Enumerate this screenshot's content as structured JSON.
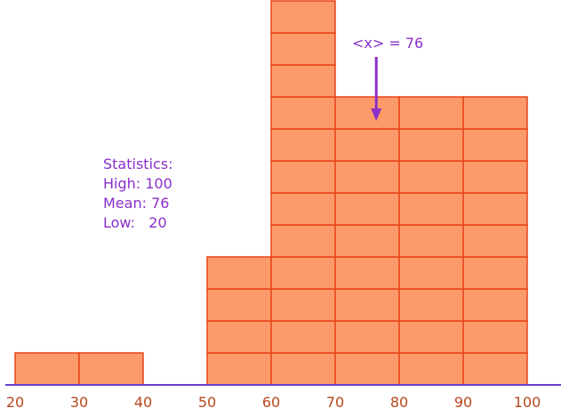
{
  "chart_data": {
    "type": "bar",
    "x": [
      25,
      35,
      55,
      65,
      75,
      85,
      95
    ],
    "values": [
      1,
      1,
      4,
      12,
      9,
      9,
      9
    ],
    "bin_width": 10,
    "xlim": [
      20,
      100
    ],
    "ylim": [
      0,
      12
    ],
    "x_ticks": [
      "20",
      "30",
      "40",
      "50",
      "60",
      "70",
      "80",
      "90",
      "100"
    ],
    "statistics": {
      "heading": "Statistics:",
      "high": "High: 100",
      "mean": "Mean: 76",
      "low": "Low:   20"
    },
    "mean_annotation": {
      "label": "<x> = 76",
      "value": 76
    },
    "colors": {
      "fill": "#fc9a6a",
      "stroke": "#e8431a",
      "axis": "#6a3fd0",
      "tick_text": "#b8461c",
      "stats_text": "#8a2fc9"
    }
  }
}
